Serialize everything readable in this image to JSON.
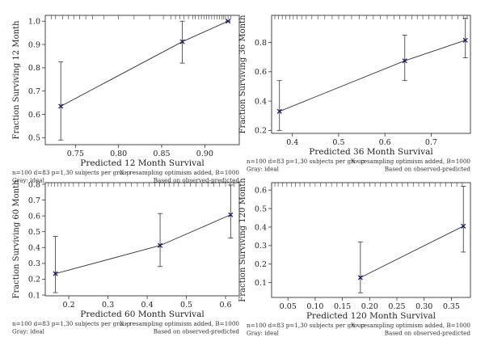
{
  "chart_data": [
    {
      "type": "line",
      "xlabel": "Predicted 12 Month Survival",
      "ylabel": "Fraction Surviving 12 Month",
      "xlim": [
        0.715,
        0.94
      ],
      "ylim": [
        0.47,
        1.025
      ],
      "xticks": [
        0.75,
        0.8,
        0.85,
        0.9
      ],
      "xtick_labels": [
        "0.75",
        "0.80",
        "0.85",
        "0.90"
      ],
      "yticks": [
        0.5,
        0.6,
        0.7,
        0.8,
        0.9,
        1.0
      ],
      "ytick_labels": [
        "0.5",
        "0.6",
        "0.7",
        "0.8",
        "0.9",
        "1.0"
      ],
      "points": [
        {
          "x": 0.733,
          "y": 0.635,
          "lo": 0.49,
          "hi": 0.825
        },
        {
          "x": 0.874,
          "y": 0.912,
          "lo": 0.82,
          "hi": 1.0
        },
        {
          "x": 0.927,
          "y": 1.0,
          "lo": 1.0,
          "hi": 1.0
        }
      ],
      "rug": [
        0.722,
        0.727,
        0.735,
        0.742,
        0.748,
        0.755,
        0.762,
        0.77,
        0.783,
        0.8,
        0.818,
        0.836,
        0.852,
        0.861,
        0.866,
        0.871,
        0.876,
        0.881,
        0.886,
        0.889,
        0.893,
        0.896,
        0.899,
        0.902,
        0.905,
        0.908,
        0.911,
        0.914,
        0.917,
        0.92,
        0.922,
        0.924,
        0.927,
        0.93
      ],
      "notes": {
        "left1": "n=100 d=83 p=1,30 subjects per group",
        "right1": "X - resampling optimism added, B=1000",
        "left2": "Gray: ideal",
        "right2": "Based on observed-predicted"
      }
    },
    {
      "type": "line",
      "xlabel": "Predicted 36 Month Survival",
      "ylabel": "Fraction Surviving 36 Month",
      "xlim": [
        0.355,
        0.785
      ],
      "ylim": [
        0.18,
        0.985
      ],
      "xticks": [
        0.4,
        0.5,
        0.6,
        0.7
      ],
      "xtick_labels": [
        "0.4",
        "0.5",
        "0.6",
        "0.7"
      ],
      "yticks": [
        0.2,
        0.4,
        0.6,
        0.8
      ],
      "ytick_labels": [
        "0.2",
        "0.4",
        "0.6",
        "0.8"
      ],
      "points": [
        {
          "x": 0.372,
          "y": 0.33,
          "lo": 0.2,
          "hi": 0.54
        },
        {
          "x": 0.643,
          "y": 0.675,
          "lo": 0.54,
          "hi": 0.85
        },
        {
          "x": 0.774,
          "y": 0.815,
          "lo": 0.695,
          "hi": 0.965
        }
      ],
      "rug": [
        0.362,
        0.37,
        0.378,
        0.386,
        0.394,
        0.402,
        0.41,
        0.42,
        0.43,
        0.442,
        0.455,
        0.47,
        0.486,
        0.5,
        0.512,
        0.528,
        0.545,
        0.56,
        0.575,
        0.59,
        0.605,
        0.62,
        0.632,
        0.645,
        0.658,
        0.67,
        0.682,
        0.695,
        0.708,
        0.72,
        0.732,
        0.745,
        0.758,
        0.77,
        0.778
      ],
      "notes": {
        "left1": "n=100 d=83 p=1,30 subjects per group",
        "right1": "X - resampling optimism added, B=1000",
        "left2": "Gray: ideal",
        "right2": "Based on observed-predicted"
      }
    },
    {
      "type": "line",
      "xlabel": "Predicted 60 Month Survival",
      "ylabel": "Fraction Surviving 60 Month",
      "xlim": [
        0.14,
        0.635
      ],
      "ylim": [
        0.095,
        0.81
      ],
      "xticks": [
        0.2,
        0.3,
        0.4,
        0.5,
        0.6
      ],
      "xtick_labels": [
        "0.2",
        "0.3",
        "0.4",
        "0.5",
        "0.6"
      ],
      "yticks": [
        0.1,
        0.2,
        0.3,
        0.4,
        0.5,
        0.6,
        0.7,
        0.8
      ],
      "ytick_labels": [
        "0.1",
        "0.2",
        "0.3",
        "0.4",
        "0.5",
        "0.6",
        "0.7",
        "0.8"
      ],
      "points": [
        {
          "x": 0.166,
          "y": 0.235,
          "lo": 0.115,
          "hi": 0.47
        },
        {
          "x": 0.433,
          "y": 0.413,
          "lo": 0.28,
          "hi": 0.615
        },
        {
          "x": 0.613,
          "y": 0.607,
          "lo": 0.46,
          "hi": 0.795
        }
      ],
      "rug": [
        0.148,
        0.156,
        0.164,
        0.172,
        0.18,
        0.19,
        0.2,
        0.212,
        0.225,
        0.24,
        0.255,
        0.27,
        0.285,
        0.3,
        0.315,
        0.33,
        0.345,
        0.36,
        0.375,
        0.39,
        0.405,
        0.42,
        0.432,
        0.444,
        0.456,
        0.468,
        0.48,
        0.495,
        0.51,
        0.525,
        0.54,
        0.555,
        0.57,
        0.585,
        0.6,
        0.612,
        0.622
      ],
      "notes": {
        "left1": "n=100 d=83 p=1,30 subjects per group",
        "right1": "X - resampling optimism added, B=1000",
        "left2": "Gray: ideal",
        "right2": "Based on observed-predicted"
      }
    },
    {
      "type": "line",
      "xlabel": "Predicted 120 Month Survival",
      "ylabel": "Fraction Surviving 120 Month",
      "xlim": [
        0.02,
        0.385
      ],
      "ylim": [
        0.02,
        0.64
      ],
      "xticks": [
        0.05,
        0.1,
        0.15,
        0.2,
        0.25,
        0.3,
        0.35
      ],
      "xtick_labels": [
        "0.05",
        "0.10",
        "0.15",
        "0.20",
        "0.25",
        "0.30",
        "0.35"
      ],
      "yticks": [
        0.1,
        0.2,
        0.3,
        0.4,
        0.5,
        0.6
      ],
      "ytick_labels": [
        "0.1",
        "0.2",
        "0.3",
        "0.4",
        "0.5",
        "0.6"
      ],
      "points": [
        {
          "x": 0.183,
          "y": 0.127,
          "lo": 0.045,
          "hi": 0.32
        },
        {
          "x": 0.372,
          "y": 0.405,
          "lo": 0.265,
          "hi": 0.62
        }
      ],
      "rug": [
        0.026,
        0.032,
        0.04,
        0.048,
        0.056,
        0.064,
        0.072,
        0.08,
        0.09,
        0.1,
        0.11,
        0.12,
        0.13,
        0.14,
        0.15,
        0.16,
        0.17,
        0.18,
        0.19,
        0.2,
        0.21,
        0.22,
        0.23,
        0.24,
        0.25,
        0.26,
        0.27,
        0.28,
        0.29,
        0.3,
        0.31,
        0.32,
        0.33,
        0.34,
        0.35,
        0.36,
        0.37
      ],
      "notes": {
        "left1": "n=100 d=83 p=1,30 subjects per group",
        "right1": "X - resampling optimism added, B=1000",
        "left2": "Gray: ideal",
        "right2": "Based on observed-predicted"
      }
    }
  ]
}
